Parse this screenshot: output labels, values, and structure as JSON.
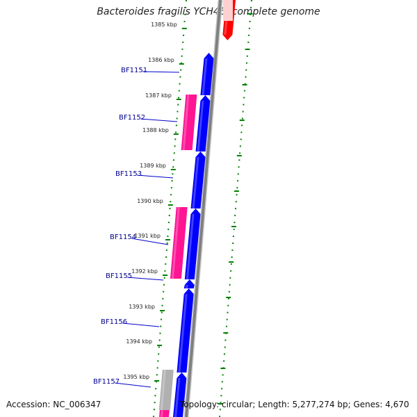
{
  "title": "Bacteroides fragilis YCH46, complete genome",
  "accession": "Accession: NC_006347",
  "summary": "Topology: circular; Length: 5,277,274 bp; Genes: 4,670",
  "ruler_labels": [
    "1385 kbp",
    "1386 kbp",
    "1387 kbp",
    "1388 kbp",
    "1389 kbp",
    "1390 kbp",
    "1391 kbp",
    "1392 kbp",
    "1393 kbp",
    "1394 kbp",
    "1395 kbp"
  ],
  "gene_labels": [
    "BF1151",
    "BF1152",
    "BF1153",
    "BF1154",
    "BF1155",
    "BF1156",
    "BF1157"
  ],
  "colors": {
    "forward_gene": "#0000ff",
    "pink_gene": "#ff1493",
    "red_gene": "#ff0000",
    "gray_gene": "#b0b0b0",
    "backbone": "#808080",
    "ruler": "#008000",
    "gene_label": "#00008b",
    "tick_label": "#222222"
  }
}
